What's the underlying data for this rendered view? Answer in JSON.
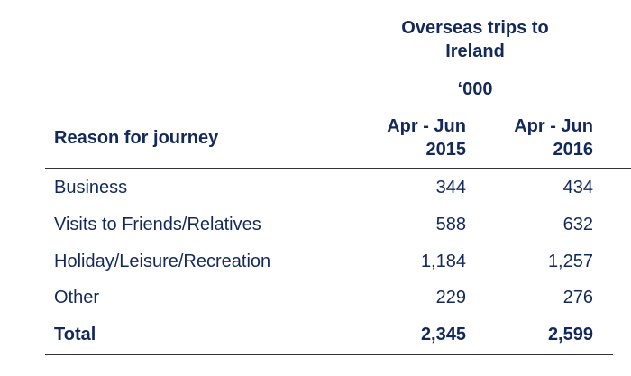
{
  "table": {
    "title_lines": [
      "Overseas trips to",
      "Ireland"
    ],
    "unit": "‘000",
    "row_header": "Reason for journey",
    "columns": [
      [
        "Apr - Jun",
        "2015"
      ],
      [
        "Apr - Jun",
        "2016"
      ]
    ],
    "rows": [
      [
        "Business",
        "344",
        "434"
      ],
      [
        "Visits to Friends/Relatives",
        "588",
        "632"
      ],
      [
        "Holiday/Leisure/Recreation",
        "1,184",
        "1,257"
      ],
      [
        "Other",
        "229",
        "276"
      ]
    ],
    "total": [
      "Total",
      "2,345",
      "2,599"
    ]
  }
}
